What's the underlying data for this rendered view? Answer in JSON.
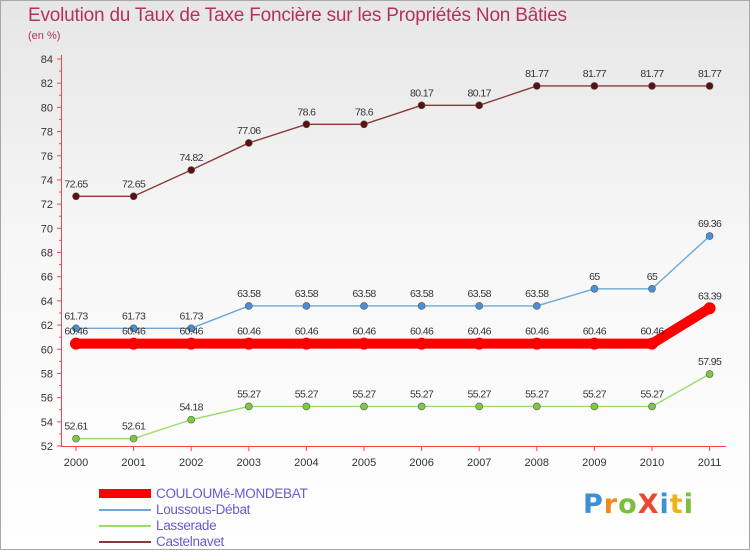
{
  "title": "Evolution du Taux de Taxe Foncière sur les Propriétés Non Bâties",
  "subtitle": "(en %)",
  "logo_text": "ProXiti",
  "chart_data": {
    "type": "line",
    "x": [
      "2000",
      "2001",
      "2002",
      "2003",
      "2004",
      "2005",
      "2006",
      "2007",
      "2008",
      "2009",
      "2010",
      "2011"
    ],
    "ylim": [
      52,
      84
    ],
    "yticks": [
      52,
      54,
      56,
      58,
      60,
      62,
      64,
      66,
      68,
      70,
      72,
      74,
      76,
      78,
      80,
      82,
      84
    ],
    "grid": false,
    "legend_position": "bottom-left",
    "series": [
      {
        "name": "COULOUMé-MONDEBAT",
        "color": "#ff0000",
        "marker_color": "#ff0000",
        "values": [
          60.46,
          60.46,
          60.46,
          60.46,
          60.46,
          60.46,
          60.46,
          60.46,
          60.46,
          60.46,
          60.46,
          63.39
        ],
        "labels": [
          "60.46",
          "60.46",
          "60.46",
          "60.46",
          "60.46",
          "60.46",
          "60.46",
          "60.46",
          "60.46",
          "60.46",
          "60.46",
          "63.39"
        ]
      },
      {
        "name": "Loussous-Débat",
        "color": "#6fa8d6",
        "marker_color": "#4a90d9",
        "values": [
          61.73,
          61.73,
          61.73,
          63.58,
          63.58,
          63.58,
          63.58,
          63.58,
          63.58,
          65,
          65,
          69.36
        ],
        "labels": [
          "61.73",
          "61.73",
          "61.73",
          "63.58",
          "63.58",
          "63.58",
          "63.58",
          "63.58",
          "63.58",
          "65",
          "65",
          "69.36"
        ]
      },
      {
        "name": "Lasserade",
        "color": "#99dd66",
        "marker_color": "#7cc943",
        "values": [
          52.61,
          52.61,
          54.18,
          55.27,
          55.27,
          55.27,
          55.27,
          55.27,
          55.27,
          55.27,
          55.27,
          57.95
        ],
        "labels": [
          "52.61",
          "52.61",
          "54.18",
          "55.27",
          "55.27",
          "55.27",
          "55.27",
          "55.27",
          "55.27",
          "55.27",
          "55.27",
          "57.95"
        ]
      },
      {
        "name": "Castelnavet",
        "color": "#8b3a3a",
        "marker_color": "#5c1010",
        "values": [
          72.65,
          72.65,
          74.82,
          77.06,
          78.6,
          78.6,
          80.17,
          80.17,
          81.77,
          81.77,
          81.77,
          81.77
        ],
        "labels": [
          "72.65",
          "72.65",
          "74.82",
          "77.06",
          "78.6",
          "78.6",
          "80.17",
          "80.17",
          "81.77",
          "81.77",
          "81.77",
          "81.77"
        ]
      }
    ]
  }
}
